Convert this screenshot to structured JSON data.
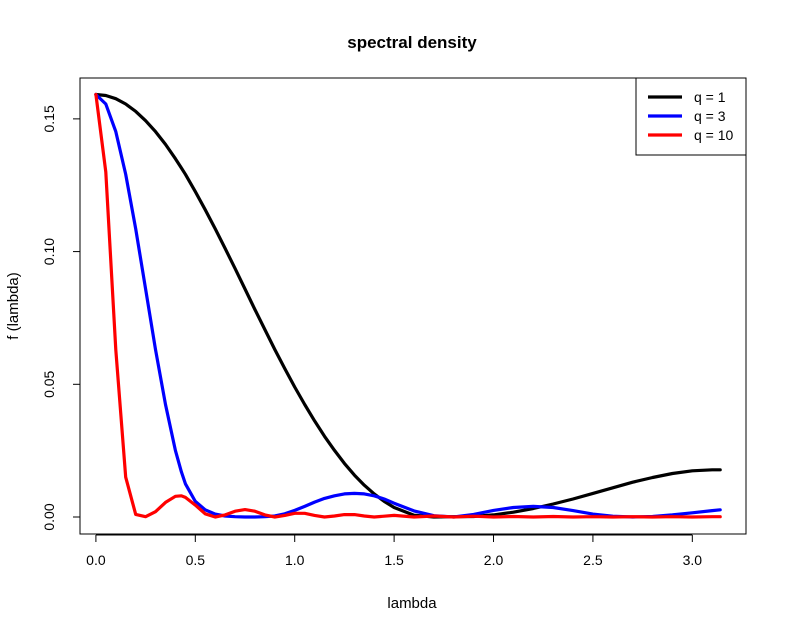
{
  "chart_data": {
    "type": "line",
    "title": "spectral density",
    "xlabel": "lambda",
    "ylabel": "f (lambda)",
    "xlim": [
      -0.08,
      3.27
    ],
    "ylim": [
      -0.0064,
      0.1654
    ],
    "x_ticks": [
      0.0,
      0.5,
      1.0,
      1.5,
      2.0,
      2.5,
      3.0
    ],
    "x_tick_labels": [
      "0.0",
      "0.5",
      "1.0",
      "1.5",
      "2.0",
      "2.5",
      "3.0"
    ],
    "y_ticks": [
      0.0,
      0.05,
      0.1,
      0.15
    ],
    "y_tick_labels": [
      "0.00",
      "0.05",
      "0.10",
      "0.15"
    ],
    "grid": false,
    "legend_position": "top-right",
    "x": [
      0,
      0.05,
      0.1,
      0.15,
      0.2,
      0.25,
      0.3,
      0.35,
      0.4,
      0.43,
      0.45,
      0.5,
      0.55,
      0.6,
      0.65,
      0.7,
      0.75,
      0.8,
      0.85,
      0.9,
      0.95,
      1.0,
      1.05,
      1.1,
      1.15,
      1.2,
      1.25,
      1.3,
      1.35,
      1.4,
      1.45,
      1.5,
      1.6,
      1.7,
      1.8,
      1.9,
      2.0,
      2.1,
      2.2,
      2.3,
      2.4,
      2.5,
      2.6,
      2.7,
      2.8,
      2.9,
      3.0,
      3.1,
      3.14
    ],
    "series": [
      {
        "name": "q = 1",
        "color": "#000000",
        "values": [
          0.1592,
          0.1588,
          0.1576,
          0.1556,
          0.1528,
          0.1493,
          0.1452,
          0.1404,
          0.135,
          0.1315,
          0.1291,
          0.1226,
          0.1158,
          0.1086,
          0.1012,
          0.0936,
          0.0859,
          0.0782,
          0.0706,
          0.0631,
          0.0559,
          0.049,
          0.0424,
          0.0362,
          0.0304,
          0.0251,
          0.0202,
          0.0158,
          0.012,
          0.0087,
          0.0059,
          0.0036,
          0.0007,
          0.0,
          0.0001,
          0.0002,
          0.0008,
          0.0018,
          0.0032,
          0.0049,
          0.0068,
          0.0089,
          0.011,
          0.0131,
          0.0149,
          0.0164,
          0.0174,
          0.0178,
          0.0178
        ]
      },
      {
        "name": "q = 3",
        "color": "#0000ff",
        "values": [
          0.1592,
          0.1556,
          0.1452,
          0.1291,
          0.1086,
          0.0859,
          0.0631,
          0.0424,
          0.0251,
          0.017,
          0.0125,
          0.0059,
          0.0027,
          0.0011,
          0.0004,
          0.0001,
          0.0,
          0.0,
          0.0001,
          0.0004,
          0.0012,
          0.0025,
          0.004,
          0.0056,
          0.007,
          0.008,
          0.0087,
          0.0089,
          0.0087,
          0.008,
          0.0068,
          0.0052,
          0.0023,
          0.0005,
          0.0,
          0.001,
          0.0025,
          0.0036,
          0.004,
          0.0036,
          0.0024,
          0.0011,
          0.0003,
          0.0,
          0.0002,
          0.0008,
          0.0016,
          0.0024,
          0.0027
        ]
      },
      {
        "name": "q = 10",
        "color": "#ff0000",
        "values": [
          0.1592,
          0.13,
          0.063,
          0.015,
          0.001,
          0.0001,
          0.002,
          0.0055,
          0.0078,
          0.008,
          0.0074,
          0.0045,
          0.0012,
          0.0,
          0.0008,
          0.0022,
          0.0028,
          0.0022,
          0.0008,
          0.0,
          0.0006,
          0.0014,
          0.0014,
          0.0006,
          0.0,
          0.0004,
          0.0009,
          0.0009,
          0.0004,
          0.0,
          0.0003,
          0.0006,
          0.0,
          0.0004,
          0.0,
          0.0003,
          0.0,
          0.0002,
          0.0,
          0.0002,
          0.0,
          0.0001,
          0.0,
          0.0001,
          0.0,
          0.0001,
          0.0,
          0.0001,
          0.0001
        ]
      }
    ]
  }
}
